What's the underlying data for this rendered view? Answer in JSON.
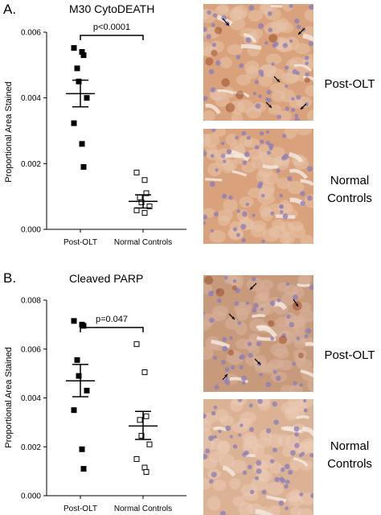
{
  "panels": [
    {
      "letter": "A.",
      "title": "M30 CytoDEATH",
      "side_labels": {
        "top": "Post-OLT",
        "bottom_line1": "Normal",
        "bottom_line2": "Controls"
      }
    },
    {
      "letter": "B.",
      "title": "Cleaved PARP",
      "side_labels": {
        "top": "Post-OLT",
        "bottom_line1": "Normal",
        "bottom_line2": "Controls"
      }
    }
  ],
  "colors": {
    "tissue_bg": "#d9a27d",
    "tissue_cell": "#e7c3a7",
    "nucleus": "#8d7fb6",
    "sinusoid": "#f3e7df",
    "stain_brown": "#9a4f2a",
    "marker": "#000000"
  },
  "chart_data": [
    {
      "type": "scatter",
      "title": "M30 CytoDEATH",
      "xlabel": "",
      "ylabel": "Proportional Area Stained",
      "ylim": [
        0,
        0.006
      ],
      "yticks": [
        "0.000",
        "0.002",
        "0.004",
        "0.006"
      ],
      "categories": [
        "Post-OLT",
        "Normal Controls"
      ],
      "annotation": "p<0.0001",
      "series": [
        {
          "category": "Post-OLT",
          "marker": "filled-square",
          "values": [
            0.00552,
            0.0054,
            0.0053,
            0.0049,
            0.0045,
            0.004,
            0.00323,
            0.0026,
            0.0019
          ],
          "mean": 0.00413,
          "sem_upper": 0.00454,
          "sem_lower": 0.00373
        },
        {
          "category": "Normal Controls",
          "marker": "open-square",
          "values": [
            0.00173,
            0.0015,
            0.0011,
            0.00097,
            0.00082,
            0.0007,
            0.00058,
            0.0005
          ],
          "mean": 0.00085,
          "sem_upper": 0.00105,
          "sem_lower": 0.00065
        }
      ]
    },
    {
      "type": "scatter",
      "title": "Cleaved PARP",
      "xlabel": "",
      "ylabel": "Proportional Area Stained",
      "ylim": [
        0,
        0.008
      ],
      "yticks": [
        "0.000",
        "0.002",
        "0.004",
        "0.006",
        "0.008"
      ],
      "categories": [
        "Post-OLT",
        "Normal Controls"
      ],
      "annotation": "p=0.047",
      "series": [
        {
          "category": "Post-OLT",
          "marker": "filled-square",
          "values": [
            0.00715,
            0.007,
            0.00695,
            0.00555,
            0.0049,
            0.0043,
            0.0035,
            0.0019,
            0.0011
          ],
          "mean": 0.0047,
          "sem_upper": 0.00537,
          "sem_lower": 0.00405
        },
        {
          "category": "Normal Controls",
          "marker": "open-square",
          "values": [
            0.0062,
            0.00505,
            0.00325,
            0.0031,
            0.00245,
            0.0021,
            0.0015,
            0.00115,
            0.00097
          ],
          "mean": 0.00285,
          "sem_upper": 0.00345,
          "sem_lower": 0.0023
        }
      ]
    }
  ]
}
